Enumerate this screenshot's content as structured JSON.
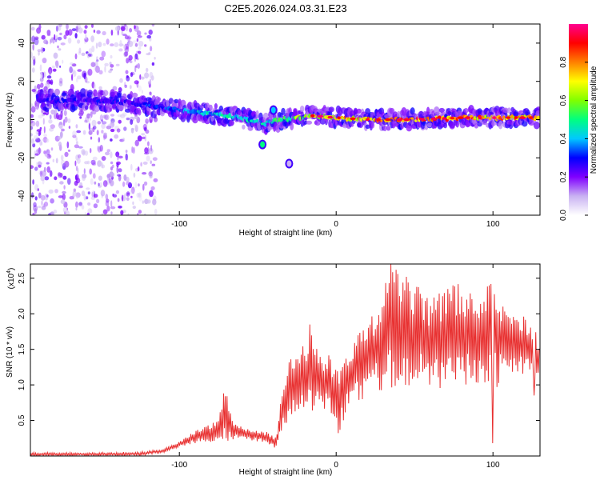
{
  "title": "C2E5.2026.024.03.31.E23",
  "chart_data": [
    {
      "type": "heatmap",
      "name": "spectrogram",
      "xlabel": "Height of straight line (km)",
      "ylabel": "Frequency (Hz)",
      "xlim": [
        -195,
        130
      ],
      "ylim": [
        -50,
        50
      ],
      "xticks": [
        -100,
        0,
        100
      ],
      "yticks": [
        -40,
        -20,
        0,
        20,
        40
      ],
      "xtick_labels": [
        "-100",
        "0",
        "100"
      ],
      "ytick_labels": [
        "-40",
        "-20",
        "0",
        "20",
        "40"
      ],
      "colorbar": {
        "label": "Normalized spectral amplitude",
        "range": [
          0,
          1
        ],
        "ticks": [
          0.0,
          0.2,
          0.4,
          0.6,
          0.8
        ],
        "tick_labels": [
          "0.0",
          "0.2",
          "0.4",
          "0.6",
          "0.8"
        ],
        "colors": [
          "#ffffff",
          "#c9b2f2",
          "#8000ff",
          "#0000ff",
          "#00c8ff",
          "#00ff80",
          "#80ff00",
          "#ffff00",
          "#ff8000",
          "#ff0000",
          "#ff0090"
        ]
      },
      "ridge": {
        "description": "dominant frequency ridge",
        "x": [
          -190,
          -160,
          -130,
          -110,
          -90,
          -70,
          -55,
          -45,
          -35,
          -25,
          -15,
          0,
          20,
          50,
          80,
          110,
          130
        ],
        "y": [
          10,
          10,
          9,
          6,
          4,
          2,
          0,
          -2,
          0,
          1,
          2,
          1,
          0,
          0,
          1,
          1,
          1
        ],
        "amplitude": [
          0.3,
          0.3,
          0.3,
          0.35,
          0.45,
          0.5,
          0.45,
          0.5,
          0.55,
          0.65,
          0.75,
          0.8,
          0.85,
          0.9,
          0.9,
          0.85,
          0.8
        ]
      },
      "features": [
        {
          "x": -47,
          "y": -13,
          "amplitude": 0.5
        },
        {
          "x": -40,
          "y": 5,
          "amplitude": 0.4
        },
        {
          "x": -30,
          "y": -23,
          "amplitude": 0.1
        }
      ],
      "noise_region": {
        "x_from": -195,
        "x_to": -115,
        "amplitude": 0.15
      }
    },
    {
      "type": "line",
      "name": "snr",
      "xlabel": "Height of straight line (km)",
      "ylabel": "SNR (10 * v/v)",
      "scale_label": "(x10",
      "scale_exponent": "4",
      "series_color": "#e83030",
      "xlim": [
        -195,
        130
      ],
      "ylim": [
        0,
        2.7
      ],
      "xticks": [
        -100,
        0,
        100
      ],
      "yticks": [
        0.5,
        1.0,
        1.5,
        2.0,
        2.5
      ],
      "xtick_labels": [
        "-100",
        "0",
        "100"
      ],
      "ytick_labels": [
        "0.5",
        "1.0",
        "1.5",
        "2.0",
        "2.5"
      ],
      "envelope": {
        "x": [
          -195,
          -150,
          -125,
          -110,
          -100,
          -90,
          -80,
          -73,
          -70,
          -65,
          -55,
          -45,
          -38,
          -35,
          -30,
          -25,
          -20,
          -15,
          -10,
          -5,
          0,
          10,
          25,
          35,
          45,
          60,
          75,
          90,
          100,
          110,
          120,
          130
        ],
        "low": [
          0.0,
          0.0,
          0.0,
          0.05,
          0.12,
          0.18,
          0.2,
          0.2,
          0.18,
          0.2,
          0.22,
          0.18,
          0.1,
          0.35,
          0.5,
          0.55,
          0.6,
          0.6,
          0.55,
          0.6,
          0.25,
          0.7,
          0.9,
          0.95,
          1.0,
          0.9,
          0.95,
          1.0,
          0.9,
          1.1,
          1.1,
          1.0
        ],
        "high": [
          0.05,
          0.05,
          0.06,
          0.1,
          0.2,
          0.35,
          0.45,
          0.65,
          0.9,
          0.5,
          0.38,
          0.35,
          0.25,
          0.85,
          1.35,
          1.4,
          1.65,
          1.85,
          1.4,
          1.5,
          1.2,
          1.6,
          2.05,
          2.7,
          2.6,
          2.2,
          2.5,
          2.2,
          2.55,
          2.1,
          2.0,
          1.65
        ]
      },
      "peaks": [
        {
          "x": -72,
          "y": 0.88
        },
        {
          "x": -17,
          "y": 1.85
        },
        {
          "x": 35,
          "y": 2.7
        },
        {
          "x": 100,
          "y": 0.18
        },
        {
          "x": 126,
          "y": 0.85
        }
      ]
    }
  ]
}
